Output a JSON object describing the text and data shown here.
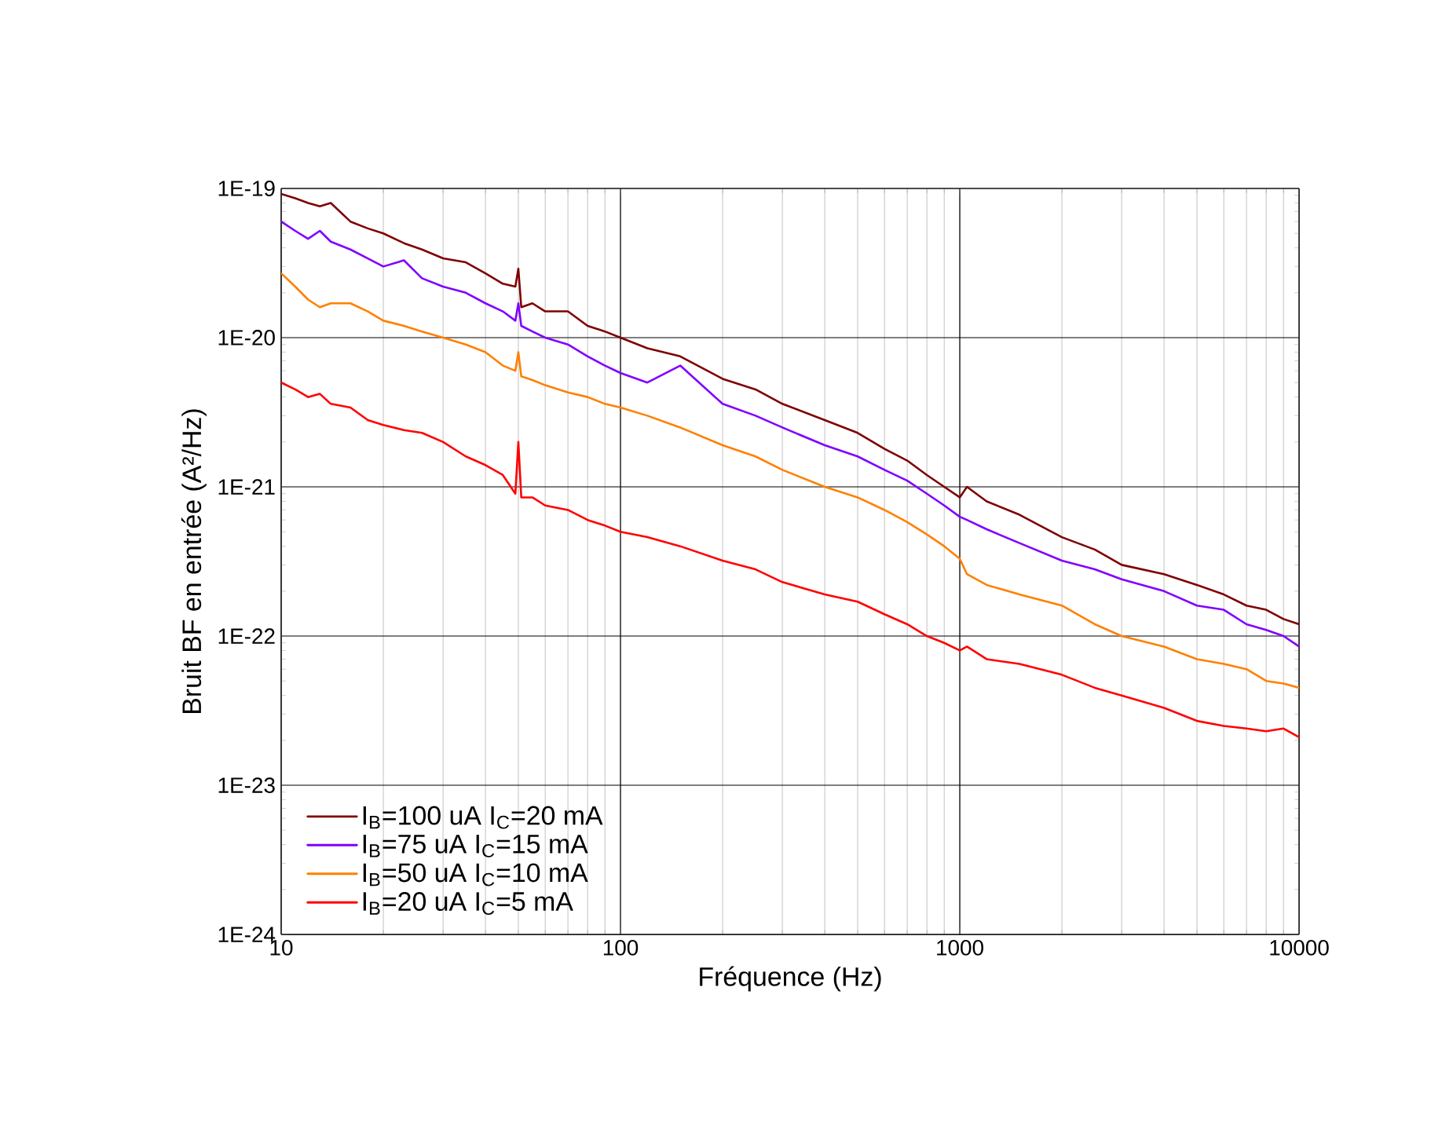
{
  "chart_data": {
    "type": "line",
    "xlabel": "Fréquence (Hz)",
    "ylabel": "Bruit BF en entrée (A²/Hz)",
    "log": "xy",
    "grid": true,
    "legend": "bottom left",
    "line_style": "solid",
    "marker": "none",
    "x": [
      10,
      11,
      12,
      13,
      14,
      16,
      18,
      20,
      23,
      26,
      30,
      35,
      40,
      45,
      49,
      50,
      51,
      55,
      60,
      70,
      80,
      90,
      100,
      120,
      150,
      200,
      250,
      300,
      400,
      500,
      600,
      700,
      800,
      900,
      1000,
      1050,
      1200,
      1500,
      2000,
      2500,
      3000,
      4000,
      5000,
      6000,
      7000,
      8000,
      9000,
      10000
    ],
    "xlim": [
      10,
      10000
    ],
    "ylim": [
      1e-24,
      1e-19
    ],
    "xticks": [
      10,
      100,
      1000,
      10000
    ],
    "yticks": [
      {
        "value": 1e-24,
        "label": "1E-24"
      },
      {
        "value": 1e-23,
        "label": "1E-23"
      },
      {
        "value": 1e-22,
        "label": "1E-22"
      },
      {
        "value": 1e-21,
        "label": "1E-21"
      },
      {
        "value": 1e-20,
        "label": "1E-20"
      },
      {
        "value": 1e-19,
        "label": "1E-19"
      }
    ],
    "series": [
      {
        "name": "I$_{B}$=100 uA   I$_{C}$=20 mA",
        "color": "#7f0000",
        "values": [
          9.2e-20,
          8.6e-20,
          8e-20,
          7.6e-20,
          8e-20,
          6e-20,
          5.4e-20,
          5e-20,
          4.3e-20,
          3.9e-20,
          3.4e-20,
          3.2e-20,
          2.7e-20,
          2.3e-20,
          2.2e-20,
          2.9e-20,
          1.6e-20,
          1.7e-20,
          1.5e-20,
          1.5e-20,
          1.2e-20,
          1.1e-20,
          1e-20,
          8.5e-21,
          7.5e-21,
          5.3e-21,
          4.5e-21,
          3.6e-21,
          2.8e-21,
          2.3e-21,
          1.8e-21,
          1.5e-21,
          1.2e-21,
          1e-21,
          8.5e-22,
          1e-21,
          8e-22,
          6.5e-22,
          4.6e-22,
          3.8e-22,
          3e-22,
          2.6e-22,
          2.2e-22,
          1.9e-22,
          1.6e-22,
          1.5e-22,
          1.3e-22,
          1.2e-22
        ]
      },
      {
        "name": "I$_{B}$=75 uA   I$_{C}$=15 mA",
        "color": "#8000ff",
        "values": [
          6e-20,
          5.2e-20,
          4.6e-20,
          5.2e-20,
          4.4e-20,
          3.9e-20,
          3.4e-20,
          3e-20,
          3.3e-20,
          2.5e-20,
          2.2e-20,
          2e-20,
          1.7e-20,
          1.5e-20,
          1.3e-20,
          1.7e-20,
          1.2e-20,
          1.1e-20,
          1e-20,
          9e-21,
          7.5e-21,
          6.5e-21,
          5.8e-21,
          5e-21,
          6.5e-21,
          3.6e-21,
          3e-21,
          2.5e-21,
          1.9e-21,
          1.6e-21,
          1.3e-21,
          1.1e-21,
          9e-22,
          7.5e-22,
          6.3e-22,
          6e-22,
          5.2e-22,
          4.2e-22,
          3.2e-22,
          2.8e-22,
          2.4e-22,
          2e-22,
          1.6e-22,
          1.5e-22,
          1.2e-22,
          1.1e-22,
          1e-22,
          8.5e-23
        ]
      },
      {
        "name": "I$_{B}$=50 uA   I$_{C}$=10 mA",
        "color": "#ff8000",
        "values": [
          2.7e-20,
          2.2e-20,
          1.8e-20,
          1.6e-20,
          1.7e-20,
          1.7e-20,
          1.5e-20,
          1.3e-20,
          1.2e-20,
          1.1e-20,
          1e-20,
          9e-21,
          8e-21,
          6.5e-21,
          6e-21,
          8e-21,
          5.5e-21,
          5.2e-21,
          4.8e-21,
          4.3e-21,
          4e-21,
          3.6e-21,
          3.4e-21,
          3e-21,
          2.5e-21,
          1.9e-21,
          1.6e-21,
          1.3e-21,
          1e-21,
          8.5e-22,
          7e-22,
          5.8e-22,
          4.8e-22,
          4e-22,
          3.3e-22,
          2.6e-22,
          2.2e-22,
          1.9e-22,
          1.6e-22,
          1.2e-22,
          1e-22,
          8.5e-23,
          7e-23,
          6.5e-23,
          6e-23,
          5e-23,
          4.8e-23,
          4.5e-23
        ]
      },
      {
        "name": "I$_{B}$=20 uA   I$_{C}$=5 mA",
        "color": "#ff0000",
        "values": [
          5e-21,
          4.5e-21,
          4e-21,
          4.2e-21,
          3.6e-21,
          3.4e-21,
          2.8e-21,
          2.6e-21,
          2.4e-21,
          2.3e-21,
          2e-21,
          1.6e-21,
          1.4e-21,
          1.2e-21,
          9e-22,
          2e-21,
          8.5e-22,
          8.5e-22,
          7.5e-22,
          7e-22,
          6e-22,
          5.5e-22,
          5e-22,
          4.6e-22,
          4e-22,
          3.2e-22,
          2.8e-22,
          2.3e-22,
          1.9e-22,
          1.7e-22,
          1.4e-22,
          1.2e-22,
          1e-22,
          9e-23,
          8e-23,
          8.5e-23,
          7e-23,
          6.5e-23,
          5.5e-23,
          4.5e-23,
          4e-23,
          3.3e-23,
          2.7e-23,
          2.5e-23,
          2.4e-23,
          2.3e-23,
          2.4e-23,
          2.1e-23
        ]
      }
    ]
  }
}
